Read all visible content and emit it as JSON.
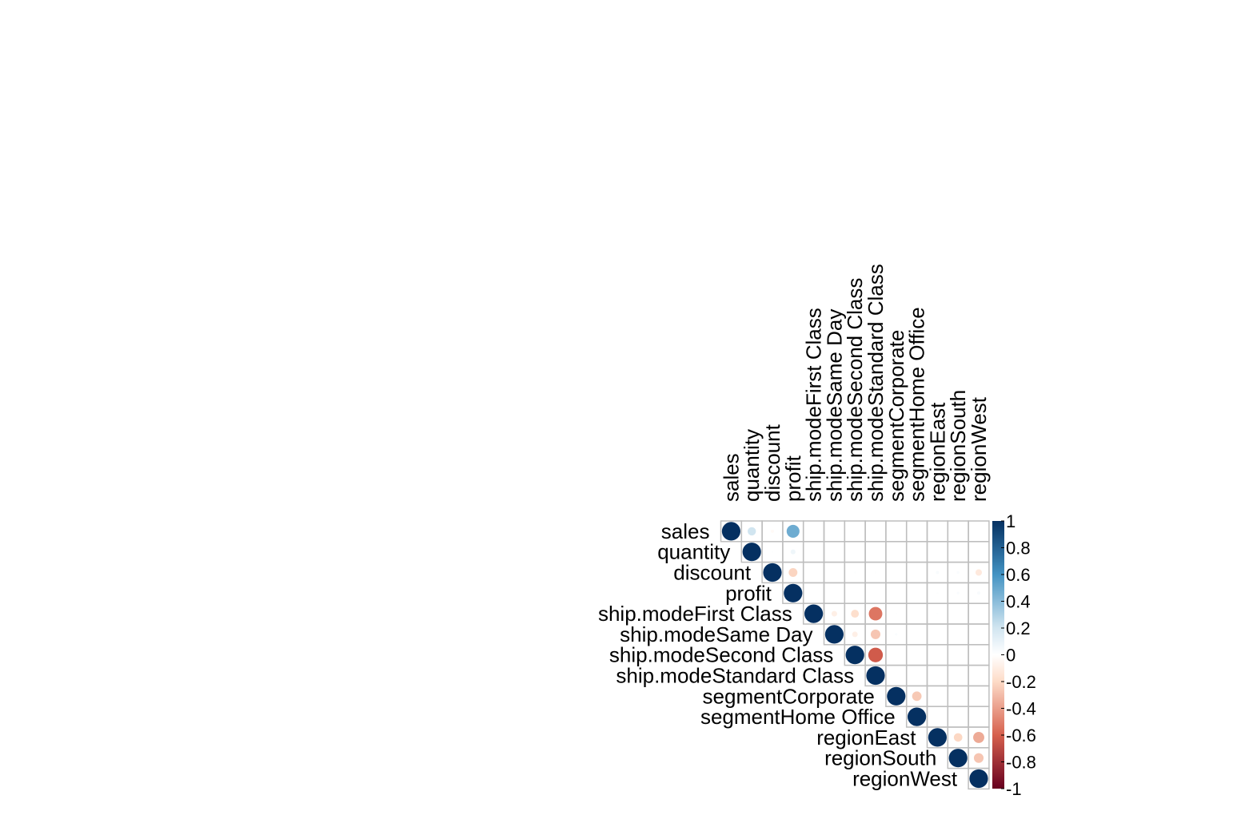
{
  "chart_data": {
    "type": "heatmap",
    "subtype": "correlation-upper-circle",
    "variables": [
      "sales",
      "quantity",
      "discount",
      "profit",
      "ship.modeFirst Class",
      "ship.modeSame Day",
      "ship.modeSecond Class",
      "ship.modeStandard Class",
      "segmentCorporate",
      "segmentHome Office",
      "regionEast",
      "regionSouth",
      "regionWest"
    ],
    "matrix": [
      [
        1.0,
        0.2,
        -0.03,
        0.48,
        0.0,
        0.0,
        0.0,
        0.0,
        0.0,
        0.0,
        0.0,
        0.0,
        0.0
      ],
      [
        null,
        1.0,
        0.01,
        0.07,
        0.0,
        0.0,
        0.0,
        0.0,
        0.0,
        0.0,
        0.0,
        0.0,
        0.0
      ],
      [
        null,
        null,
        1.0,
        -0.22,
        0.0,
        0.0,
        0.01,
        0.01,
        0.0,
        0.0,
        0.03,
        0.02,
        -0.12
      ],
      [
        null,
        null,
        null,
        1.0,
        0.0,
        0.0,
        0.0,
        0.0,
        0.0,
        0.0,
        0.01,
        0.02,
        0.03
      ],
      [
        null,
        null,
        null,
        null,
        1.0,
        -0.09,
        -0.18,
        -0.53,
        0.01,
        0.0,
        0.01,
        0.0,
        0.0
      ],
      [
        null,
        null,
        null,
        null,
        null,
        1.0,
        -0.09,
        -0.27,
        0.02,
        0.0,
        0.0,
        0.0,
        0.0
      ],
      [
        null,
        null,
        null,
        null,
        null,
        null,
        1.0,
        -0.62,
        0.0,
        0.0,
        0.0,
        0.0,
        0.0
      ],
      [
        null,
        null,
        null,
        null,
        null,
        null,
        null,
        1.0,
        0.0,
        0.0,
        0.0,
        0.0,
        0.0
      ],
      [
        null,
        null,
        null,
        null,
        null,
        null,
        null,
        null,
        1.0,
        -0.26,
        0.0,
        0.0,
        0.0
      ],
      [
        null,
        null,
        null,
        null,
        null,
        null,
        null,
        null,
        null,
        1.0,
        0.0,
        0.0,
        0.0
      ],
      [
        null,
        null,
        null,
        null,
        null,
        null,
        null,
        null,
        null,
        null,
        1.0,
        -0.21,
        -0.36
      ],
      [
        null,
        null,
        null,
        null,
        null,
        null,
        null,
        null,
        null,
        null,
        null,
        1.0,
        -0.27
      ],
      [
        null,
        null,
        null,
        null,
        null,
        null,
        null,
        null,
        null,
        null,
        null,
        null,
        1.0
      ]
    ],
    "colorbar": {
      "ticks": [
        "1",
        "0.8",
        "0.6",
        "0.4",
        "0.2",
        "0",
        "-0.2",
        "-0.4",
        "-0.6",
        "-0.8",
        "-1"
      ],
      "range": [
        -1,
        1
      ],
      "colors": {
        "neg1": "#67001F",
        "neg06": "#D6604D",
        "neg02": "#FDDBC7",
        "zero": "#FFFFFF",
        "pos02": "#D1E5F0",
        "pos06": "#4393C3",
        "pos1": "#053061"
      }
    },
    "grid": true,
    "legend_position": "right"
  }
}
